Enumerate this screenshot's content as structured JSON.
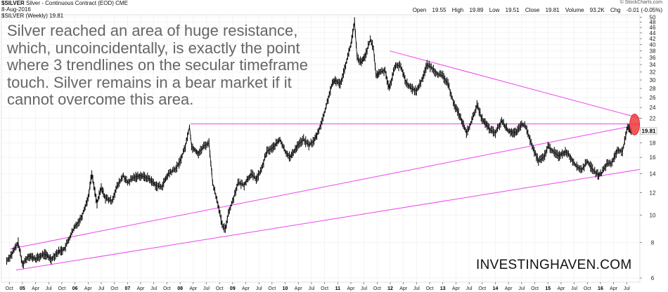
{
  "header": {
    "symbol": "$SILVER",
    "name": "Silver - Continuous Contract (EOD)",
    "exchange": "CME",
    "date": "8-Aug-2016",
    "legend": "$SILVER (Weekly) 19.81",
    "watermark": "© StockCharts.com",
    "quote": {
      "open_label": "Open",
      "open": "19.55",
      "high_label": "High",
      "high": "19.89",
      "low_label": "Low",
      "low": "19.51",
      "close_label": "Close",
      "close": "19.81",
      "volume_label": "Volume",
      "volume": "93.2K",
      "chg_label": "Chg",
      "chg": "-0.01 (-0.05%)"
    }
  },
  "annotation": "Silver reached an area of huge resistance, which, uncoincidentally, is exactly the point where 3 trendlines on the secular timeframe touch. Silver remains in a bear market if it cannot overcome this area.",
  "brand": "INVESTINGHAVEN.COM",
  "colors": {
    "price": "#111111",
    "trendline": "#ee44ee",
    "highlight": "#ee3b3b",
    "grid": "#eeeeee",
    "price_box": "#bbbbbb"
  },
  "chart_data": {
    "type": "line",
    "series_name": "$SILVER (Weekly)",
    "scale": "log",
    "x_range": [
      2004.6,
      2016.75
    ],
    "y_range": [
      5.8,
      51
    ],
    "y_ticks": [
      6,
      8,
      10,
      12,
      14,
      16,
      18,
      20,
      22,
      24,
      26,
      28,
      30,
      32,
      34,
      36,
      38,
      40,
      42,
      44,
      46,
      48,
      50
    ],
    "x_ticks": [
      {
        "label": "Oct",
        "t": 2004.75,
        "bold": false
      },
      {
        "label": "05",
        "t": 2005.0,
        "bold": true
      },
      {
        "label": "Apr",
        "t": 2005.25,
        "bold": false
      },
      {
        "label": "Jul",
        "t": 2005.5,
        "bold": false
      },
      {
        "label": "Oct",
        "t": 2005.75,
        "bold": false
      },
      {
        "label": "06",
        "t": 2006.0,
        "bold": true
      },
      {
        "label": "Apr",
        "t": 2006.25,
        "bold": false
      },
      {
        "label": "Jul",
        "t": 2006.5,
        "bold": false
      },
      {
        "label": "Oct",
        "t": 2006.75,
        "bold": false
      },
      {
        "label": "07",
        "t": 2007.0,
        "bold": true
      },
      {
        "label": "Apr",
        "t": 2007.25,
        "bold": false
      },
      {
        "label": "Jul",
        "t": 2007.5,
        "bold": false
      },
      {
        "label": "Oct",
        "t": 2007.75,
        "bold": false
      },
      {
        "label": "08",
        "t": 2008.0,
        "bold": true
      },
      {
        "label": "Apr",
        "t": 2008.25,
        "bold": false
      },
      {
        "label": "Jul",
        "t": 2008.5,
        "bold": false
      },
      {
        "label": "Oct",
        "t": 2008.75,
        "bold": false
      },
      {
        "label": "09",
        "t": 2009.0,
        "bold": true
      },
      {
        "label": "Apr",
        "t": 2009.25,
        "bold": false
      },
      {
        "label": "Jul",
        "t": 2009.5,
        "bold": false
      },
      {
        "label": "Oct",
        "t": 2009.75,
        "bold": false
      },
      {
        "label": "10",
        "t": 2010.0,
        "bold": true
      },
      {
        "label": "Apr",
        "t": 2010.25,
        "bold": false
      },
      {
        "label": "Jul",
        "t": 2010.5,
        "bold": false
      },
      {
        "label": "Oct",
        "t": 2010.75,
        "bold": false
      },
      {
        "label": "11",
        "t": 2011.0,
        "bold": true
      },
      {
        "label": "Apr",
        "t": 2011.25,
        "bold": false
      },
      {
        "label": "Jul",
        "t": 2011.5,
        "bold": false
      },
      {
        "label": "Oct",
        "t": 2011.75,
        "bold": false
      },
      {
        "label": "12",
        "t": 2012.0,
        "bold": true
      },
      {
        "label": "Apr",
        "t": 2012.25,
        "bold": false
      },
      {
        "label": "Jul",
        "t": 2012.5,
        "bold": false
      },
      {
        "label": "Oct",
        "t": 2012.75,
        "bold": false
      },
      {
        "label": "13",
        "t": 2013.0,
        "bold": true
      },
      {
        "label": "Apr",
        "t": 2013.25,
        "bold": false
      },
      {
        "label": "Jul",
        "t": 2013.5,
        "bold": false
      },
      {
        "label": "Oct",
        "t": 2013.75,
        "bold": false
      },
      {
        "label": "14",
        "t": 2014.0,
        "bold": true
      },
      {
        "label": "Apr",
        "t": 2014.25,
        "bold": false
      },
      {
        "label": "Jul",
        "t": 2014.5,
        "bold": false
      },
      {
        "label": "Oct",
        "t": 2014.75,
        "bold": false
      },
      {
        "label": "15",
        "t": 2015.0,
        "bold": true
      },
      {
        "label": "Apr",
        "t": 2015.25,
        "bold": false
      },
      {
        "label": "Jul",
        "t": 2015.5,
        "bold": false
      },
      {
        "label": "Oct",
        "t": 2015.75,
        "bold": false
      },
      {
        "label": "16",
        "t": 2016.0,
        "bold": true
      },
      {
        "label": "Apr",
        "t": 2016.25,
        "bold": false
      },
      {
        "label": "Jul",
        "t": 2016.5,
        "bold": false
      }
    ],
    "price": [
      [
        2004.7,
        6.9
      ],
      [
        2004.8,
        7.3
      ],
      [
        2004.92,
        8.0
      ],
      [
        2005.0,
        6.7
      ],
      [
        2005.12,
        7.2
      ],
      [
        2005.25,
        7.0
      ],
      [
        2005.42,
        7.3
      ],
      [
        2005.55,
        7.0
      ],
      [
        2005.67,
        7.4
      ],
      [
        2005.8,
        7.6
      ],
      [
        2005.92,
        8.5
      ],
      [
        2006.0,
        9.1
      ],
      [
        2006.12,
        9.8
      ],
      [
        2006.25,
        11.5
      ],
      [
        2006.32,
        14.0
      ],
      [
        2006.42,
        11.0
      ],
      [
        2006.5,
        12.5
      ],
      [
        2006.58,
        11.5
      ],
      [
        2006.7,
        11.2
      ],
      [
        2006.8,
        12.6
      ],
      [
        2006.92,
        13.8
      ],
      [
        2007.0,
        13.0
      ],
      [
        2007.12,
        13.6
      ],
      [
        2007.25,
        13.8
      ],
      [
        2007.4,
        13.5
      ],
      [
        2007.55,
        12.7
      ],
      [
        2007.65,
        12.6
      ],
      [
        2007.78,
        14.0
      ],
      [
        2007.92,
        14.6
      ],
      [
        2008.0,
        15.5
      ],
      [
        2008.1,
        17.5
      ],
      [
        2008.18,
        20.5
      ],
      [
        2008.22,
        17.5
      ],
      [
        2008.35,
        16.5
      ],
      [
        2008.45,
        17.5
      ],
      [
        2008.55,
        18.0
      ],
      [
        2008.62,
        13.0
      ],
      [
        2008.72,
        11.0
      ],
      [
        2008.8,
        9.2
      ],
      [
        2008.86,
        8.9
      ],
      [
        2008.92,
        10.2
      ],
      [
        2009.0,
        11.2
      ],
      [
        2009.1,
        13.0
      ],
      [
        2009.22,
        12.8
      ],
      [
        2009.35,
        14.0
      ],
      [
        2009.45,
        13.4
      ],
      [
        2009.55,
        14.5
      ],
      [
        2009.65,
        16.8
      ],
      [
        2009.75,
        17.2
      ],
      [
        2009.9,
        18.5
      ],
      [
        2010.0,
        16.8
      ],
      [
        2010.1,
        16.0
      ],
      [
        2010.25,
        17.8
      ],
      [
        2010.35,
        18.5
      ],
      [
        2010.45,
        17.7
      ],
      [
        2010.55,
        18.3
      ],
      [
        2010.62,
        19.5
      ],
      [
        2010.72,
        22.0
      ],
      [
        2010.8,
        25.0
      ],
      [
        2010.88,
        28.5
      ],
      [
        2010.95,
        30.0
      ],
      [
        2011.05,
        29.0
      ],
      [
        2011.15,
        34.0
      ],
      [
        2011.25,
        40.0
      ],
      [
        2011.32,
        48.0
      ],
      [
        2011.37,
        36.0
      ],
      [
        2011.45,
        34.5
      ],
      [
        2011.52,
        36.5
      ],
      [
        2011.62,
        41.5
      ],
      [
        2011.68,
        39.0
      ],
      [
        2011.73,
        31.0
      ],
      [
        2011.8,
        32.0
      ],
      [
        2011.9,
        32.5
      ],
      [
        2011.98,
        28.0
      ],
      [
        2012.1,
        34.0
      ],
      [
        2012.2,
        33.5
      ],
      [
        2012.3,
        29.5
      ],
      [
        2012.4,
        28.0
      ],
      [
        2012.5,
        27.5
      ],
      [
        2012.6,
        30.0
      ],
      [
        2012.7,
        34.0
      ],
      [
        2012.8,
        33.0
      ],
      [
        2012.9,
        31.5
      ],
      [
        2013.0,
        31.0
      ],
      [
        2013.1,
        29.0
      ],
      [
        2013.22,
        24.5
      ],
      [
        2013.32,
        22.5
      ],
      [
        2013.45,
        19.5
      ],
      [
        2013.55,
        21.5
      ],
      [
        2013.65,
        24.5
      ],
      [
        2013.75,
        21.8
      ],
      [
        2013.9,
        20.0
      ],
      [
        2014.0,
        19.5
      ],
      [
        2014.12,
        21.5
      ],
      [
        2014.25,
        19.8
      ],
      [
        2014.4,
        19.5
      ],
      [
        2014.5,
        21.0
      ],
      [
        2014.58,
        20.5
      ],
      [
        2014.7,
        17.5
      ],
      [
        2014.82,
        15.5
      ],
      [
        2014.92,
        16.0
      ],
      [
        2015.0,
        17.5
      ],
      [
        2015.1,
        16.8
      ],
      [
        2015.2,
        16.2
      ],
      [
        2015.35,
        16.8
      ],
      [
        2015.45,
        15.8
      ],
      [
        2015.55,
        14.8
      ],
      [
        2015.65,
        14.5
      ],
      [
        2015.75,
        15.5
      ],
      [
        2015.85,
        14.5
      ],
      [
        2015.95,
        13.9
      ],
      [
        2016.02,
        14.0
      ],
      [
        2016.12,
        15.2
      ],
      [
        2016.22,
        15.3
      ],
      [
        2016.32,
        17.0
      ],
      [
        2016.42,
        16.8
      ],
      [
        2016.52,
        20.5
      ],
      [
        2016.57,
        19.8
      ],
      [
        2016.6,
        19.81
      ]
    ],
    "last_price": "19.81",
    "trendlines": [
      {
        "from": [
          2011.99,
          38.0
        ],
        "to": [
          2016.75,
          22.0
        ]
      },
      {
        "from": [
          2008.2,
          21.0
        ],
        "to": [
          2016.75,
          21.0
        ]
      },
      {
        "from": [
          2004.77,
          7.6
        ],
        "to": [
          2016.75,
          20.9
        ]
      },
      {
        "from": [
          2004.88,
          6.4
        ],
        "to": [
          2016.75,
          14.5
        ]
      }
    ],
    "highlight": {
      "t": 2016.65,
      "y": 20.9
    }
  }
}
